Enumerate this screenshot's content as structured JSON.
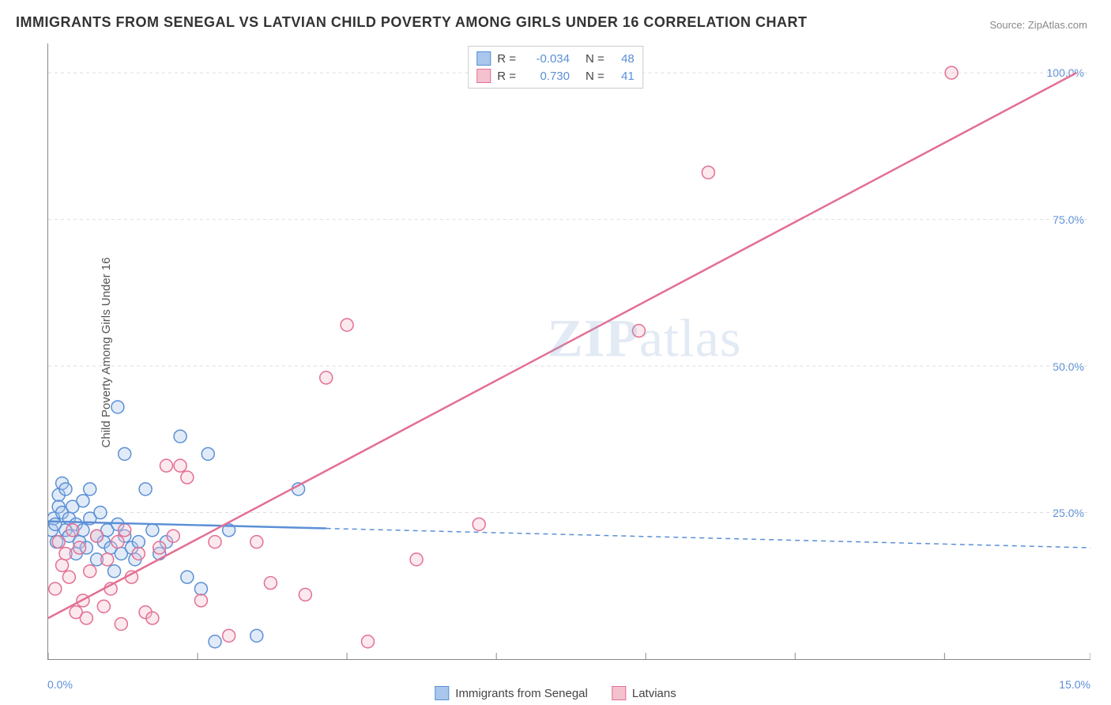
{
  "title": "IMMIGRANTS FROM SENEGAL VS LATVIAN CHILD POVERTY AMONG GIRLS UNDER 16 CORRELATION CHART",
  "source_prefix": "Source: ",
  "source_name": "ZipAtlas.com",
  "ylabel": "Child Poverty Among Girls Under 16",
  "watermark_a": "ZIP",
  "watermark_b": "atlas",
  "chart": {
    "type": "scatter",
    "background_color": "#ffffff",
    "grid_color": "#dddddd",
    "axis_color": "#888888",
    "tick_label_color": "#5b8fd6",
    "xlim": [
      0,
      15
    ],
    "ylim": [
      0,
      105
    ],
    "xtick_positions": [
      0,
      2.15,
      4.3,
      6.45,
      8.6,
      10.75,
      12.9,
      15
    ],
    "xtick_labels": {
      "0": "0.0%",
      "15": "15.0%"
    },
    "ytick_values": [
      25,
      50,
      75,
      100
    ],
    "ytick_labels": [
      "25.0%",
      "50.0%",
      "75.0%",
      "100.0%"
    ],
    "marker_radius": 8,
    "marker_fill_opacity": 0.35,
    "marker_stroke_width": 1.5,
    "line_width": 2.5,
    "dash_pattern": "6,5"
  },
  "legend_top": [
    {
      "swatch_fill": "#a9c7ec",
      "swatch_border": "#5b8fd6",
      "r_label": "R =",
      "r_val": "-0.034",
      "n_label": "N =",
      "n_val": "48"
    },
    {
      "swatch_fill": "#f4c1cf",
      "swatch_border": "#e36f93",
      "r_label": "R =",
      "r_val": "0.730",
      "n_label": "N =",
      "n_val": "41"
    }
  ],
  "legend_bottom": [
    {
      "swatch_fill": "#a9c7ec",
      "swatch_border": "#5b8fd6",
      "label": "Immigrants from Senegal"
    },
    {
      "swatch_fill": "#f4c1cf",
      "swatch_border": "#e36f93",
      "label": "Latvians"
    }
  ],
  "series": [
    {
      "name": "Immigrants from Senegal",
      "color_fill": "#a9c7ec",
      "color_stroke": "#5b8fd6",
      "regression": {
        "x1": 0,
        "y1": 23.5,
        "x2": 4.0,
        "y2": 23.0,
        "extend_x2": 15,
        "extend_y2": 19.0,
        "solid_to_x": 4.0
      },
      "points": [
        [
          0.05,
          22
        ],
        [
          0.08,
          24
        ],
        [
          0.1,
          23
        ],
        [
          0.12,
          20
        ],
        [
          0.15,
          28
        ],
        [
          0.15,
          26
        ],
        [
          0.2,
          25
        ],
        [
          0.2,
          30
        ],
        [
          0.25,
          22
        ],
        [
          0.25,
          29
        ],
        [
          0.3,
          21
        ],
        [
          0.3,
          24
        ],
        [
          0.35,
          26
        ],
        [
          0.4,
          18
        ],
        [
          0.4,
          23
        ],
        [
          0.45,
          20
        ],
        [
          0.5,
          27
        ],
        [
          0.5,
          22
        ],
        [
          0.55,
          19
        ],
        [
          0.6,
          24
        ],
        [
          0.6,
          29
        ],
        [
          0.7,
          21
        ],
        [
          0.7,
          17
        ],
        [
          0.75,
          25
        ],
        [
          0.8,
          20
        ],
        [
          0.85,
          22
        ],
        [
          0.9,
          19
        ],
        [
          0.95,
          15
        ],
        [
          1.0,
          43
        ],
        [
          1.0,
          23
        ],
        [
          1.05,
          18
        ],
        [
          1.1,
          35
        ],
        [
          1.1,
          21
        ],
        [
          1.2,
          19
        ],
        [
          1.25,
          17
        ],
        [
          1.3,
          20
        ],
        [
          1.4,
          29
        ],
        [
          1.5,
          22
        ],
        [
          1.6,
          18
        ],
        [
          1.7,
          20
        ],
        [
          1.9,
          38
        ],
        [
          2.0,
          14
        ],
        [
          2.2,
          12
        ],
        [
          2.3,
          35
        ],
        [
          2.4,
          3
        ],
        [
          2.6,
          22
        ],
        [
          3.0,
          4
        ],
        [
          3.6,
          29
        ]
      ]
    },
    {
      "name": "Latvians",
      "color_fill": "#f4c1cf",
      "color_stroke": "#e36f93",
      "regression": {
        "x1": 0,
        "y1": 7.0,
        "x2": 14.8,
        "y2": 100.0,
        "solid_to_x": 14.8
      },
      "points": [
        [
          0.1,
          12
        ],
        [
          0.15,
          20
        ],
        [
          0.2,
          16
        ],
        [
          0.25,
          18
        ],
        [
          0.3,
          14
        ],
        [
          0.35,
          22
        ],
        [
          0.4,
          8
        ],
        [
          0.45,
          19
        ],
        [
          0.5,
          10
        ],
        [
          0.55,
          7
        ],
        [
          0.6,
          15
        ],
        [
          0.7,
          21
        ],
        [
          0.8,
          9
        ],
        [
          0.85,
          17
        ],
        [
          0.9,
          12
        ],
        [
          1.0,
          20
        ],
        [
          1.05,
          6
        ],
        [
          1.1,
          22
        ],
        [
          1.2,
          14
        ],
        [
          1.3,
          18
        ],
        [
          1.4,
          8
        ],
        [
          1.5,
          7
        ],
        [
          1.6,
          19
        ],
        [
          1.7,
          33
        ],
        [
          1.8,
          21
        ],
        [
          1.9,
          33
        ],
        [
          2.0,
          31
        ],
        [
          2.2,
          10
        ],
        [
          2.4,
          20
        ],
        [
          2.6,
          4
        ],
        [
          3.0,
          20
        ],
        [
          3.2,
          13
        ],
        [
          3.7,
          11
        ],
        [
          4.0,
          48
        ],
        [
          4.3,
          57
        ],
        [
          4.6,
          3
        ],
        [
          5.3,
          17
        ],
        [
          6.2,
          23
        ],
        [
          8.5,
          56
        ],
        [
          9.5,
          83
        ],
        [
          13.0,
          100
        ]
      ]
    }
  ]
}
